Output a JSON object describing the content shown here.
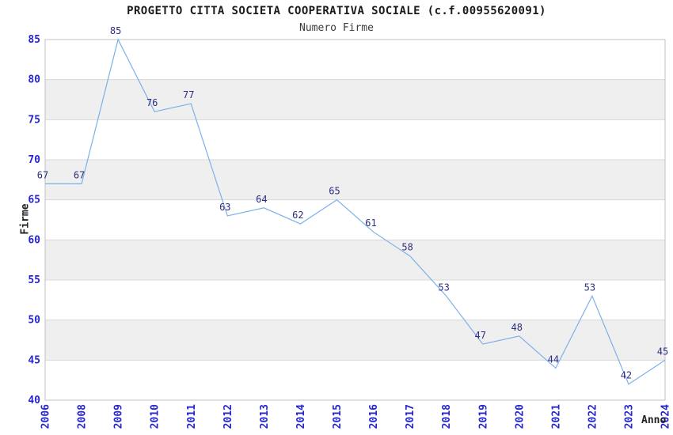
{
  "chart_data": {
    "type": "line",
    "title": "PROGETTO CITTA SOCIETA COOPERATIVA SOCIALE (c.f.00955620091)",
    "subtitle": "Numero Firme",
    "xlabel": "Anno",
    "ylabel": "Firme",
    "x": [
      "2006",
      "2008",
      "2009",
      "2010",
      "2011",
      "2012",
      "2013",
      "2014",
      "2015",
      "2016",
      "2017",
      "2018",
      "2019",
      "2020",
      "2021",
      "2022",
      "2023",
      "2024"
    ],
    "series": [
      {
        "name": "Numero Firme",
        "values": [
          67,
          67,
          85,
          76,
          77,
          63,
          64,
          62,
          65,
          61,
          58,
          53,
          47,
          48,
          44,
          53,
          42,
          45
        ]
      }
    ],
    "ylim": [
      40,
      85
    ],
    "yticks": [
      40,
      45,
      50,
      55,
      60,
      65,
      70,
      75,
      80,
      85
    ],
    "point_labels_shown": true,
    "grid": "horizontal-bands",
    "legend": "none",
    "colors": {
      "line": "#7cb0ea",
      "tick_label": "#2626cc",
      "point_label": "#2d2d82",
      "band": "#efefef",
      "band_alt": "#ffffff",
      "grid_line": "#d8d8d8",
      "border": "#c2c2c2",
      "title": "#1a1a1a",
      "subtitle": "#3c3c3c",
      "axis_title": "#222222",
      "background": "#ffffff"
    }
  }
}
